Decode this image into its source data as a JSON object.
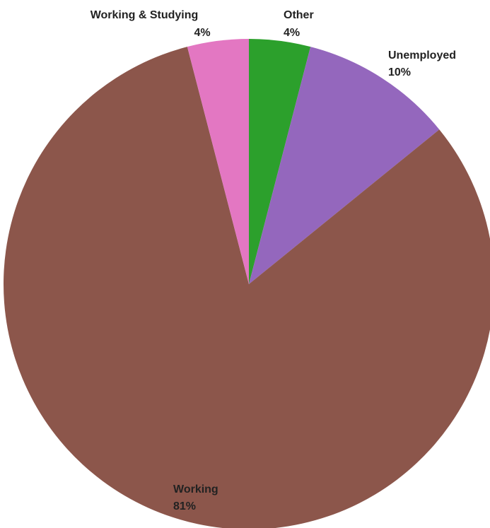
{
  "chart_data": {
    "type": "pie",
    "title": "",
    "slices": [
      {
        "label": "Other",
        "value": 4,
        "value_label": "4%",
        "color": "#2ca02c"
      },
      {
        "label": "Unemployed",
        "value": 10,
        "value_label": "10%",
        "color": "#9467bd"
      },
      {
        "label": "Working",
        "value": 81,
        "value_label": "81%",
        "color": "#8c564b"
      },
      {
        "label": "Working & Studying",
        "value": 4,
        "value_label": "4%",
        "color": "#e377c2"
      }
    ],
    "start_angle_deg": 0,
    "direction": "clockwise",
    "legend": "none"
  }
}
